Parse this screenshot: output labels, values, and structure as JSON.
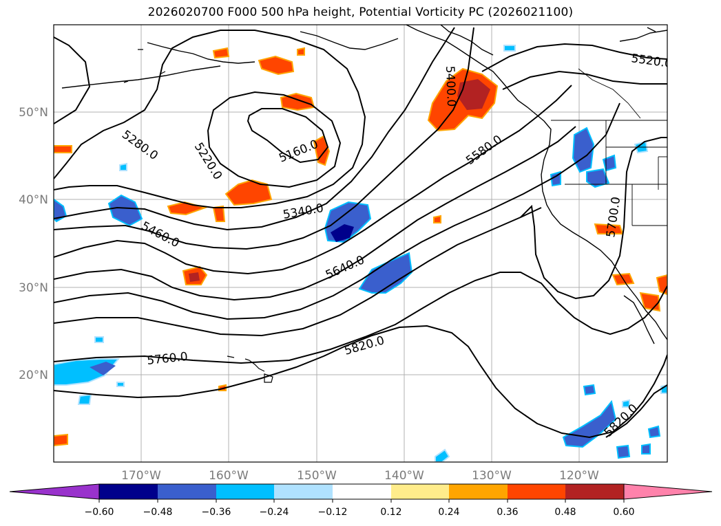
{
  "title": "2026020700 F000 500 hPa height, Potential Vorticity PC (2026021100)",
  "map": {
    "lat_labels": [
      "50°N",
      "40°N",
      "30°N",
      "20°N"
    ],
    "lon_labels": [
      "170°W",
      "160°W",
      "150°W",
      "140°W",
      "130°W",
      "120°W"
    ],
    "contour_labels": [
      "5520.0",
      "5400.0",
      "5160.0",
      "5220.0",
      "5280.0",
      "5580.0",
      "5340.0",
      "5460.0",
      "5640.0",
      "5700.0",
      "5760.0",
      "5820.0",
      "5820.0"
    ]
  },
  "colorbar": {
    "ticks": [
      "−0.60",
      "−0.48",
      "−0.36",
      "−0.24",
      "−0.12",
      "0.12",
      "0.24",
      "0.36",
      "0.48",
      "0.60"
    ],
    "colors": [
      "#9932cc",
      "#00008b",
      "#3a5fcd",
      "#00bfff",
      "#b0e2ff",
      "#ffffff",
      "#ffec8b",
      "#ffa500",
      "#ff4500",
      "#b22222",
      "#ff82ab"
    ]
  }
}
